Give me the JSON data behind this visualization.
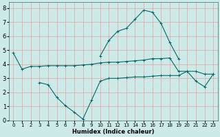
{
  "xlabel": "Humidex (Indice chaleur)",
  "background_color": "#cceae8",
  "grid_color": "#e8a0a0",
  "line_color": "#006868",
  "xlim": [
    -0.5,
    23.5
  ],
  "ylim": [
    0,
    8.4
  ],
  "x_all": [
    0,
    1,
    2,
    3,
    4,
    5,
    6,
    7,
    8,
    9,
    10,
    11,
    12,
    13,
    14,
    15,
    16,
    17,
    18,
    19,
    20,
    21,
    22,
    23
  ],
  "curve_top": [
    4.8,
    3.65,
    3.85,
    3.85,
    3.9,
    3.9,
    3.9,
    3.9,
    3.95,
    4.0,
    4.1,
    4.15,
    4.15,
    4.2,
    4.25,
    4.3,
    4.4,
    4.4,
    4.45,
    3.5,
    3.5,
    3.5,
    3.3,
    3.3
  ],
  "curve_peak_x": [
    10,
    11,
    12,
    13,
    14,
    15,
    16,
    17,
    18,
    19
  ],
  "curve_peak_y": [
    4.6,
    5.7,
    6.35,
    6.55,
    7.2,
    7.85,
    7.7,
    6.9,
    5.55,
    4.4
  ],
  "curve_bot_x": [
    3,
    4,
    5,
    6,
    7,
    8,
    9,
    10,
    11,
    12,
    13,
    14,
    15,
    16,
    17,
    18,
    19,
    20,
    21,
    22,
    23
  ],
  "curve_bot_y": [
    2.7,
    2.55,
    1.65,
    1.05,
    0.6,
    0.1,
    1.45,
    2.8,
    3.0,
    3.0,
    3.05,
    3.1,
    3.1,
    3.15,
    3.2,
    3.2,
    3.2,
    3.5,
    2.8,
    2.4,
    3.3
  ],
  "xticks": [
    0,
    1,
    2,
    3,
    4,
    5,
    6,
    7,
    8,
    9,
    10,
    11,
    12,
    13,
    14,
    15,
    16,
    17,
    18,
    19,
    20,
    21,
    22,
    23
  ],
  "yticks": [
    0,
    1,
    2,
    3,
    4,
    5,
    6,
    7,
    8
  ],
  "xtick_fontsize": 5,
  "ytick_fontsize": 6,
  "xlabel_fontsize": 6,
  "linewidth": 0.8,
  "markersize": 2.5
}
